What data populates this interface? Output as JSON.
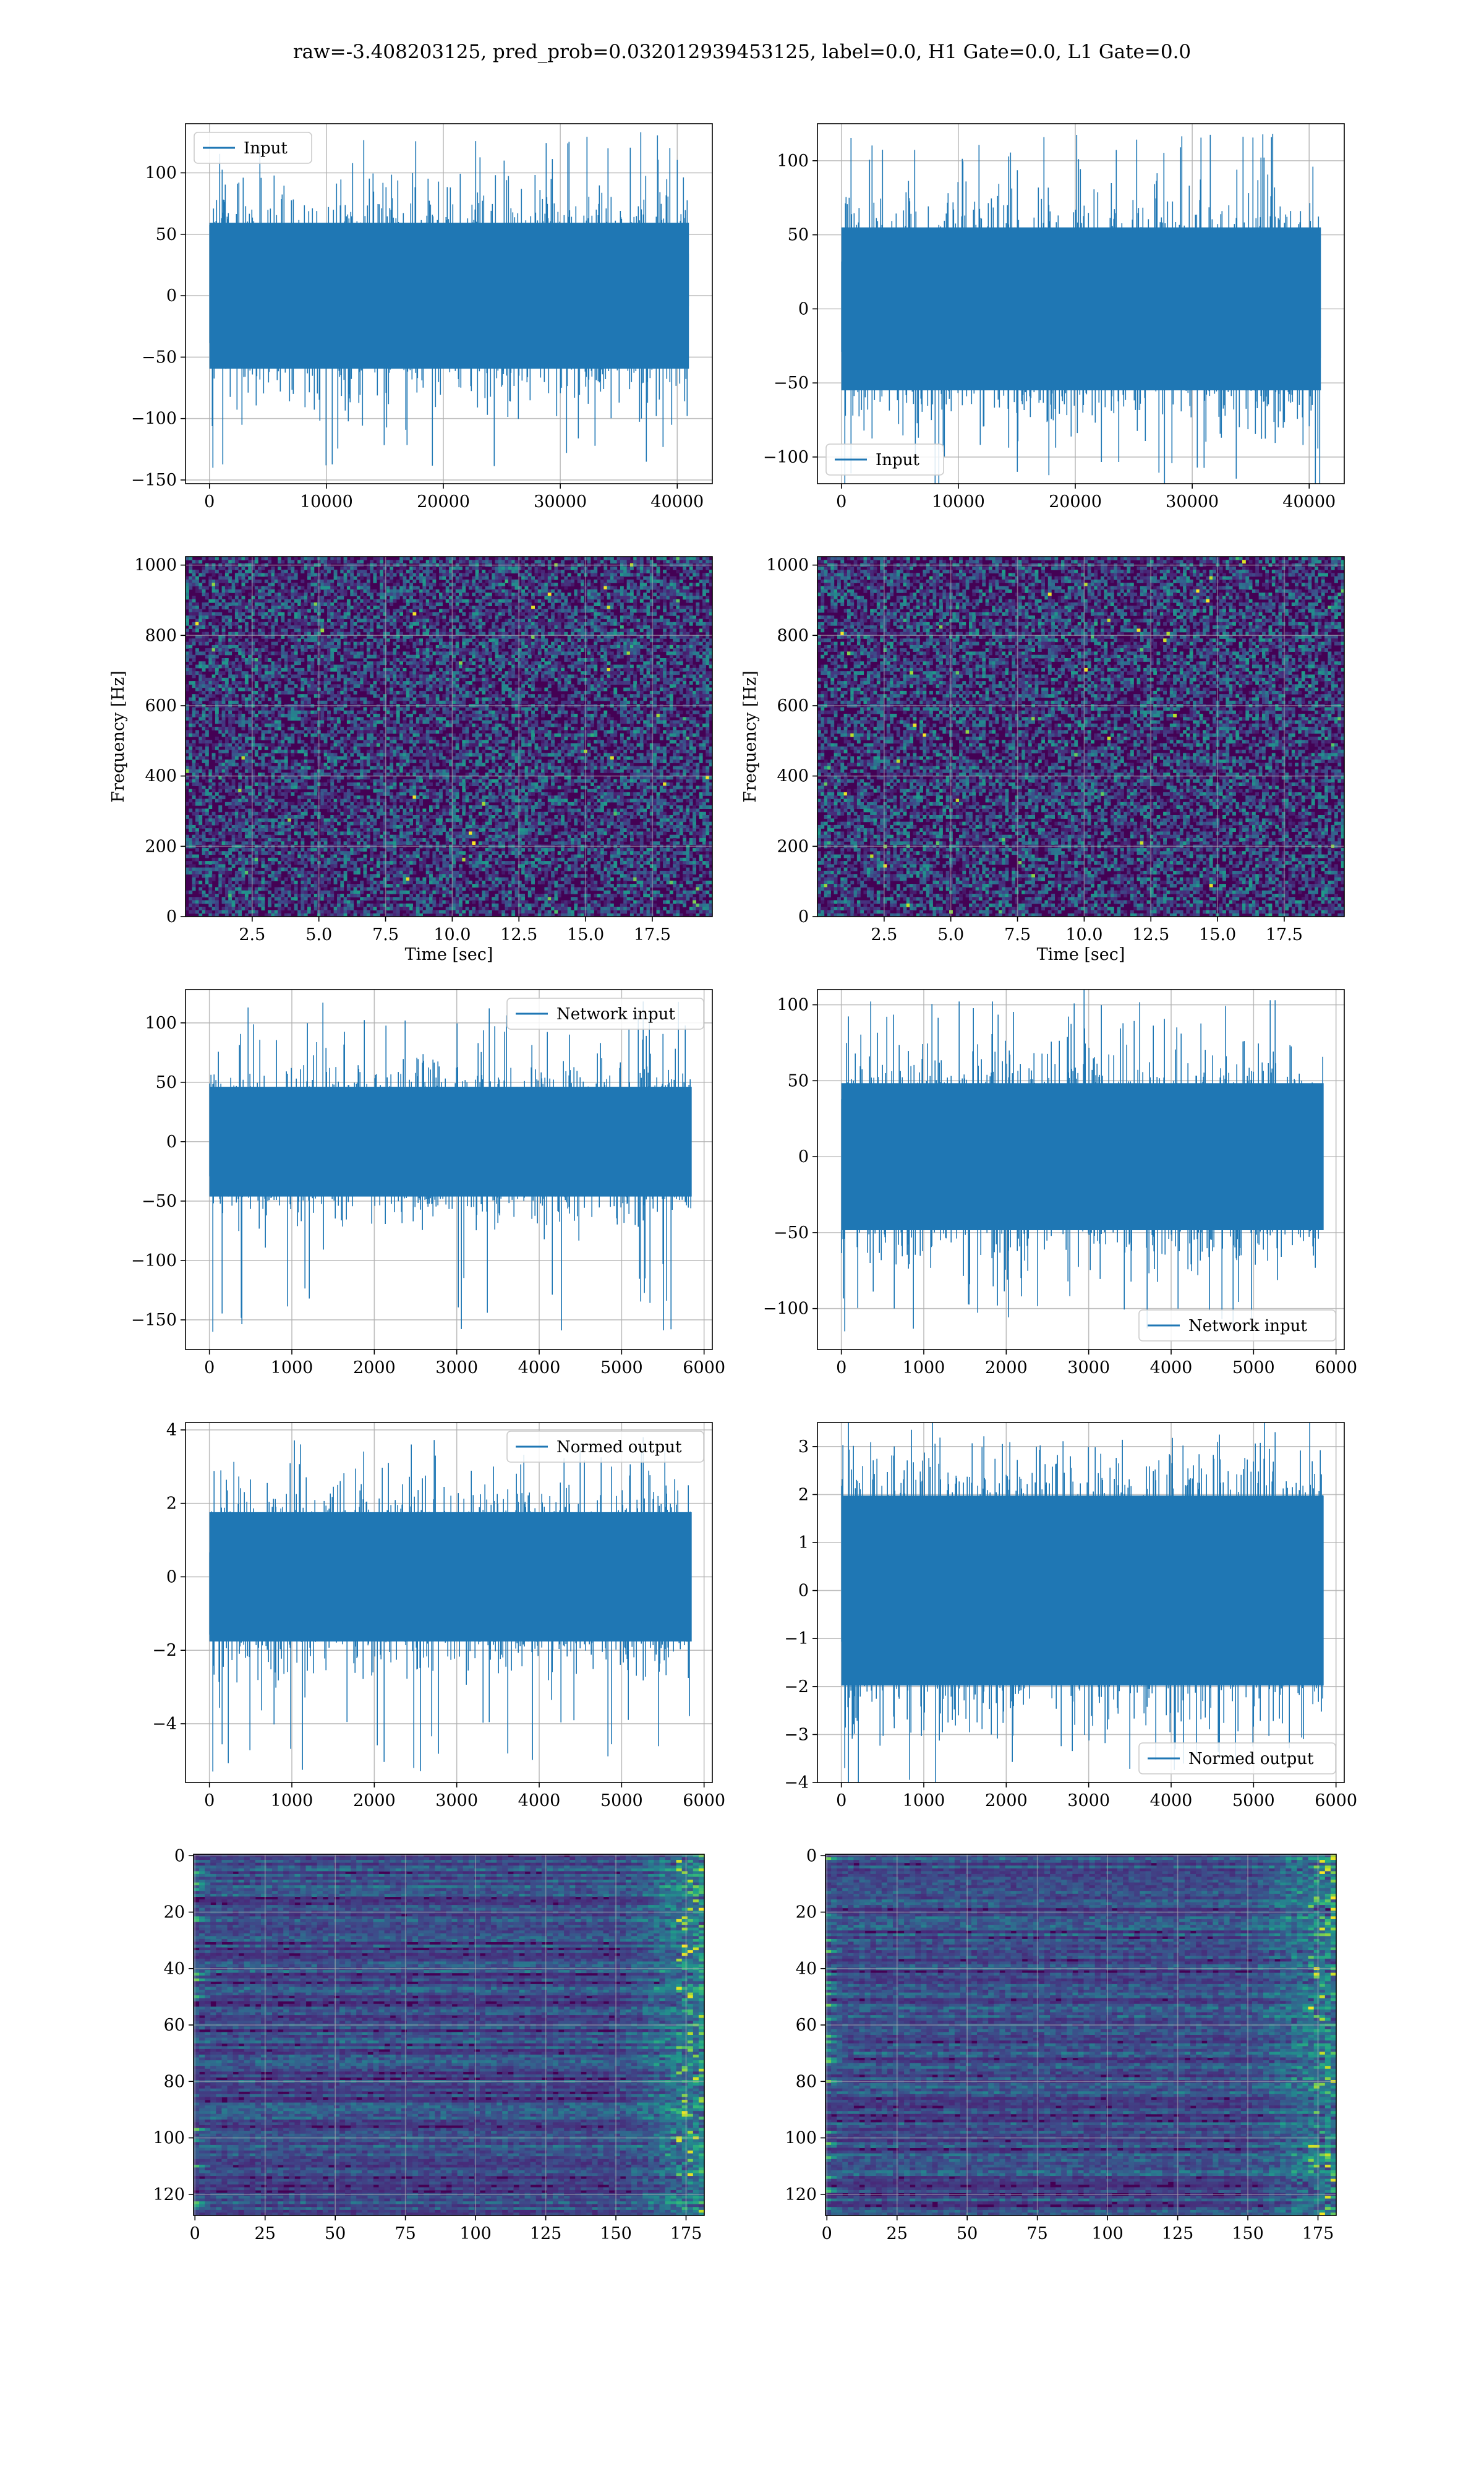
{
  "figure": {
    "suptitle": "raw=-3.408203125, pred_prob=0.032012939453125, label=0.0, H1 Gate=0.0, L1 Gate=0.0"
  },
  "colors": {
    "line": "#1f77b4",
    "grid": "#b0b0b0",
    "bg": "#ffffff",
    "viridis": [
      "#440154",
      "#482878",
      "#3e4a89",
      "#31688e",
      "#26828e",
      "#1f9e89",
      "#35b779",
      "#6ece58",
      "#b5de2b",
      "#fde725"
    ]
  },
  "chart_data": [
    {
      "id": "input-h1",
      "type": "line",
      "legend": "Input",
      "legend_loc": "upper left",
      "xlim": [
        -2050,
        43000
      ],
      "ylim": [
        -153,
        140
      ],
      "xticks": [
        0,
        10000,
        20000,
        30000,
        40000
      ],
      "xticklabels": [
        "0",
        "10000",
        "20000",
        "30000",
        "40000"
      ],
      "yticks": [
        -150,
        -100,
        -50,
        0,
        50,
        100
      ],
      "yticklabels": [
        "−150",
        "−100",
        "−50",
        "0",
        "50",
        "100"
      ],
      "signal": {
        "n": 41000,
        "std": 27,
        "spike_max": 133,
        "spike_min": -140
      }
    },
    {
      "id": "input-l1",
      "type": "line",
      "legend": "Input",
      "legend_loc": "lower left",
      "xlim": [
        -2050,
        43000
      ],
      "ylim": [
        -118,
        125
      ],
      "xticks": [
        0,
        10000,
        20000,
        30000,
        40000
      ],
      "xticklabels": [
        "0",
        "10000",
        "20000",
        "30000",
        "40000"
      ],
      "yticks": [
        -100,
        -50,
        0,
        50,
        100
      ],
      "yticklabels": [
        "−100",
        "−50",
        "0",
        "50",
        "100"
      ],
      "signal": {
        "n": 41000,
        "std": 25,
        "spike_max": 118,
        "spike_min": -124
      }
    },
    {
      "id": "spec-h1",
      "type": "heatmap",
      "xlabel": "Time [sec]",
      "ylabel": "Frequency [Hz]",
      "xlim": [
        0,
        19.75
      ],
      "ylim": [
        0,
        1024
      ],
      "xticks": [
        2.5,
        5,
        7.5,
        10,
        12.5,
        15,
        17.5
      ],
      "xticklabels": [
        "2.5",
        "5.0",
        "7.5",
        "10.0",
        "12.5",
        "15.0",
        "17.5"
      ],
      "yticks": [
        0,
        200,
        400,
        600,
        800,
        1000
      ],
      "yticklabels": [
        "0",
        "200",
        "400",
        "600",
        "800",
        "1000"
      ]
    },
    {
      "id": "spec-l1",
      "type": "heatmap",
      "xlabel": "Time [sec]",
      "ylabel": "Frequency [Hz]",
      "xlim": [
        0,
        19.75
      ],
      "ylim": [
        0,
        1024
      ],
      "xticks": [
        2.5,
        5,
        7.5,
        10,
        12.5,
        15,
        17.5
      ],
      "xticklabels": [
        "2.5",
        "5.0",
        "7.5",
        "10.0",
        "12.5",
        "15.0",
        "17.5"
      ],
      "yticks": [
        0,
        200,
        400,
        600,
        800,
        1000
      ],
      "yticklabels": [
        "0",
        "200",
        "400",
        "600",
        "800",
        "1000"
      ]
    },
    {
      "id": "net-h1",
      "type": "line",
      "legend": "Network input",
      "legend_loc": "upper right",
      "xlim": [
        -290,
        6100
      ],
      "ylim": [
        -175,
        128
      ],
      "xticks": [
        0,
        1000,
        2000,
        3000,
        4000,
        5000,
        6000
      ],
      "xticklabels": [
        "0",
        "1000",
        "2000",
        "3000",
        "4000",
        "5000",
        "6000"
      ],
      "yticks": [
        -150,
        -100,
        -50,
        0,
        50,
        100
      ],
      "yticklabels": [
        "−150",
        "−100",
        "−50",
        "0",
        "50",
        "100"
      ],
      "signal": {
        "n": 5850,
        "std": 21,
        "spike_max": 118,
        "spike_min": -160
      }
    },
    {
      "id": "net-l1",
      "type": "line",
      "legend": "Network input",
      "legend_loc": "lower right",
      "xlim": [
        -290,
        6100
      ],
      "ylim": [
        -127,
        110
      ],
      "xticks": [
        0,
        1000,
        2000,
        3000,
        4000,
        5000,
        6000
      ],
      "xticklabels": [
        "0",
        "1000",
        "2000",
        "3000",
        "4000",
        "5000",
        "6000"
      ],
      "yticks": [
        -100,
        -50,
        0,
        50,
        100
      ],
      "yticklabels": [
        "−100",
        "−50",
        "0",
        "50",
        "100"
      ],
      "signal": {
        "n": 5850,
        "std": 22,
        "spike_max": 103,
        "spike_min": -115
      }
    },
    {
      "id": "norm-h1",
      "type": "line",
      "legend": "Normed output",
      "legend_loc": "upper right",
      "xlim": [
        -290,
        6100
      ],
      "ylim": [
        -5.6,
        4.2
      ],
      "xticks": [
        0,
        1000,
        2000,
        3000,
        4000,
        5000,
        6000
      ],
      "xticklabels": [
        "0",
        "1000",
        "2000",
        "3000",
        "4000",
        "5000",
        "6000"
      ],
      "yticks": [
        -4,
        -2,
        0,
        2,
        4
      ],
      "yticklabels": [
        "−4",
        "−2",
        "0",
        "2",
        "4"
      ],
      "signal": {
        "n": 5850,
        "std": 0.8,
        "spike_max": 3.8,
        "spike_min": -5.3
      }
    },
    {
      "id": "norm-l1",
      "type": "line",
      "legend": "Normed output",
      "legend_loc": "lower right",
      "xlim": [
        -290,
        6100
      ],
      "ylim": [
        -4.0,
        3.5
      ],
      "xticks": [
        0,
        1000,
        2000,
        3000,
        4000,
        5000,
        6000
      ],
      "xticklabels": [
        "0",
        "1000",
        "2000",
        "3000",
        "4000",
        "5000",
        "6000"
      ],
      "yticks": [
        -4,
        -3,
        -2,
        -1,
        0,
        1,
        2,
        3
      ],
      "yticklabels": [
        "−4",
        "−3",
        "−2",
        "−1",
        "0",
        "1",
        "2",
        "3"
      ],
      "signal": {
        "n": 5850,
        "std": 0.9,
        "spike_max": 3.3,
        "spike_min": -3.7
      }
    },
    {
      "id": "feat-h1",
      "type": "heatmap",
      "inverted_y": true,
      "xlim": [
        -0.5,
        181.5
      ],
      "ylim": [
        127.5,
        -0.5
      ],
      "xticks": [
        0,
        25,
        50,
        75,
        100,
        125,
        150,
        175
      ],
      "xticklabels": [
        "0",
        "25",
        "50",
        "75",
        "100",
        "125",
        "150",
        "175"
      ],
      "yticks": [
        0,
        20,
        40,
        60,
        80,
        100,
        120
      ],
      "yticklabels": [
        "0",
        "20",
        "40",
        "60",
        "80",
        "100",
        "120"
      ]
    },
    {
      "id": "feat-l1",
      "type": "heatmap",
      "inverted_y": true,
      "xlim": [
        -0.5,
        181.5
      ],
      "ylim": [
        127.5,
        -0.5
      ],
      "xticks": [
        0,
        25,
        50,
        75,
        100,
        125,
        150,
        175
      ],
      "xticklabels": [
        "0",
        "25",
        "50",
        "75",
        "100",
        "125",
        "150",
        "175"
      ],
      "yticks": [
        0,
        20,
        40,
        60,
        80,
        100,
        120
      ],
      "yticklabels": [
        "0",
        "20",
        "40",
        "60",
        "80",
        "100",
        "120"
      ]
    }
  ]
}
